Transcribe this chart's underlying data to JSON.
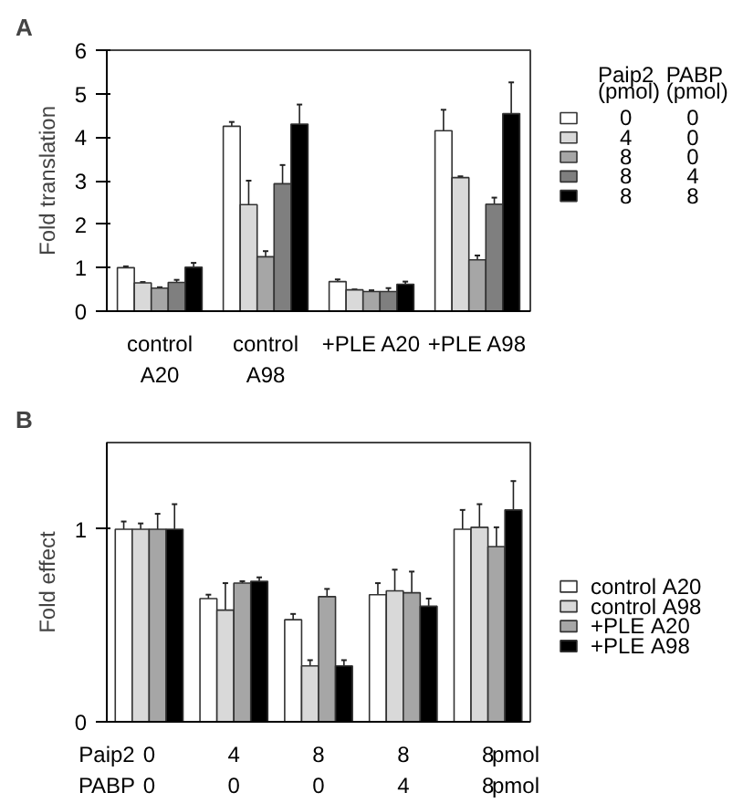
{
  "chart_data": [
    {
      "type": "bar",
      "title": "A",
      "ylabel": "Fold translation",
      "categories": [
        "control\nA20",
        "control\nA98",
        "+PLE A20",
        "+PLE A98"
      ],
      "ylim": [
        0,
        6
      ],
      "yticks": [
        0,
        1,
        2,
        3,
        4,
        5,
        6
      ],
      "legend": "right",
      "legend_title": "Paip2  PABP\n(pmol) (pmol)",
      "series": [
        {
          "name": "0         0",
          "color": "#ffffff",
          "values": [
            1.0,
            4.25,
            0.68,
            4.15
          ],
          "errors": [
            0.03,
            0.1,
            0.05,
            0.48
          ]
        },
        {
          "name": "4         0",
          "color": "#d9d9d9",
          "values": [
            0.65,
            2.45,
            0.49,
            3.07
          ],
          "errors": [
            0.02,
            0.55,
            0.01,
            0.03
          ]
        },
        {
          "name": "8         0",
          "color": "#a6a6a6",
          "values": [
            0.53,
            1.25,
            0.45,
            1.18
          ],
          "errors": [
            0.02,
            0.13,
            0.03,
            0.1
          ]
        },
        {
          "name": "8         4",
          "color": "#7f7f7f",
          "values": [
            0.66,
            2.93,
            0.45,
            2.46
          ],
          "errors": [
            0.06,
            0.43,
            0.08,
            0.15
          ]
        },
        {
          "name": "8         8",
          "color": "#000000",
          "values": [
            1.01,
            4.3,
            0.62,
            4.54
          ],
          "errors": [
            0.1,
            0.45,
            0.06,
            0.72
          ]
        }
      ]
    },
    {
      "type": "bar",
      "title": "B",
      "ylabel": "Fold effect",
      "categories": [
        "0\n0",
        "4\n0",
        "8\n0",
        "8\n4",
        "8\n8"
      ],
      "ylim": [
        0,
        1.45
      ],
      "yticks": [
        0,
        1
      ],
      "legend": "right",
      "annotations": [
        "Paip2\nPABP",
        "pmol\npmol"
      ],
      "series": [
        {
          "name": "control A20",
          "color": "#ffffff",
          "values": [
            1.0,
            0.64,
            0.53,
            0.66,
            1.0
          ],
          "errors": [
            0.04,
            0.02,
            0.03,
            0.06,
            0.1
          ]
        },
        {
          "name": "control A98",
          "color": "#d9d9d9",
          "values": [
            1.0,
            0.58,
            0.29,
            0.68,
            1.01
          ],
          "errors": [
            0.03,
            0.14,
            0.03,
            0.11,
            0.12
          ]
        },
        {
          "name": "+PLE A20",
          "color": "#a6a6a6",
          "values": [
            1.0,
            0.72,
            0.65,
            0.67,
            0.91
          ],
          "errors": [
            0.08,
            0.01,
            0.04,
            0.11,
            0.1
          ]
        },
        {
          "name": "+PLE A98",
          "color": "#000000",
          "values": [
            1.0,
            0.73,
            0.29,
            0.6,
            1.1
          ],
          "errors": [
            0.13,
            0.02,
            0.03,
            0.04,
            0.15
          ]
        }
      ]
    }
  ]
}
